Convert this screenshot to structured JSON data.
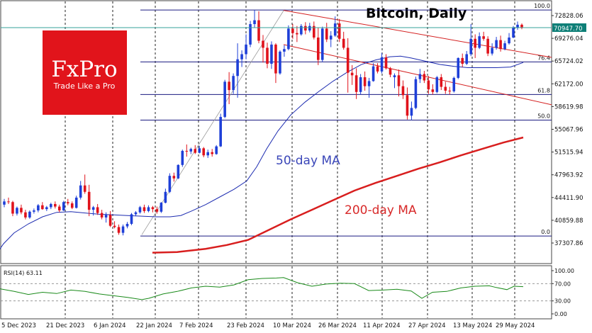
{
  "chart_data": {
    "type": "candlestick",
    "title": "Bitcoin, Daily",
    "symbol_price_label": "70947.70",
    "y_ticks": [
      "72828.06",
      "69276.04",
      "65724.02",
      "62172.00",
      "58619.98",
      "55067.96",
      "51515.94",
      "47963.92",
      "44411.90",
      "40859.88",
      "37307.86"
    ],
    "y_range": [
      35800,
      74300
    ],
    "x_ticks": [
      "5 Dec 2023",
      "21 Dec 2023",
      "6 Jan 2024",
      "22 Jan 2024",
      "7 Feb 2024",
      "23 Feb 2024",
      "10 Mar 2024",
      "26 Mar 2024",
      "11 Apr 2024",
      "27 Apr 2024",
      "13 May 2024",
      "29 May 2024"
    ],
    "colors": {
      "up": "#1e3fd8",
      "down": "#e0121b",
      "ma50": "#1c2bb0",
      "ma200": "#d81e1e",
      "fib": "#1a1a80",
      "channel": "#d42020",
      "rsi": "#1a8a1a",
      "price_line": "#36a29a"
    },
    "fibonacci": [
      {
        "label": "100.0",
        "value": 73700
      },
      {
        "label": "76.4",
        "value": 65600
      },
      {
        "label": "61.8",
        "value": 60500
      },
      {
        "label": "50.0",
        "value": 56500
      },
      {
        "label": "0.0",
        "value": 38400
      }
    ],
    "annotations": {
      "ma50": "50-day MA",
      "ma200": "200-day MA"
    },
    "rsi": {
      "label": "RSI(14) 63.11",
      "ticks": [
        "100.00",
        "70.00",
        "30.00",
        "0.00"
      ],
      "levels": [
        70,
        30
      ]
    },
    "candles": [
      [
        43300,
        44200,
        42900,
        43800
      ],
      [
        43800,
        44400,
        43400,
        43700
      ],
      [
        43700,
        43900,
        41500,
        41900
      ],
      [
        41900,
        43000,
        41600,
        42800
      ],
      [
        42800,
        43300,
        41800,
        42100
      ],
      [
        42100,
        42500,
        41000,
        41300
      ],
      [
        41300,
        42400,
        41100,
        42200
      ],
      [
        42200,
        42700,
        41900,
        42400
      ],
      [
        42400,
        43400,
        42100,
        43200
      ],
      [
        43200,
        43700,
        42500,
        42600
      ],
      [
        42600,
        43100,
        42300,
        42900
      ],
      [
        42900,
        43600,
        42600,
        43400
      ],
      [
        43400,
        43800,
        42700,
        43000
      ],
      [
        43000,
        43300,
        42100,
        42400
      ],
      [
        42400,
        43900,
        42300,
        43700
      ],
      [
        43700,
        44200,
        43200,
        43500
      ],
      [
        43500,
        43800,
        42600,
        42800
      ],
      [
        42800,
        44700,
        42700,
        44400
      ],
      [
        44400,
        47000,
        44100,
        46300
      ],
      [
        46300,
        48000,
        45000,
        45300
      ],
      [
        45300,
        46400,
        41500,
        42500
      ],
      [
        42500,
        43100,
        41600,
        42900
      ],
      [
        42900,
        43400,
        41700,
        42000
      ],
      [
        42000,
        42500,
        41000,
        41300
      ],
      [
        41300,
        42100,
        40500,
        41700
      ],
      [
        41700,
        42300,
        39800,
        40000
      ],
      [
        40000,
        40700,
        39600,
        39800
      ],
      [
        39800,
        40200,
        38600,
        38900
      ],
      [
        38900,
        40200,
        38500,
        39900
      ],
      [
        39900,
        40600,
        39600,
        40300
      ],
      [
        40300,
        42000,
        40100,
        41800
      ],
      [
        41800,
        42300,
        41500,
        42100
      ],
      [
        42100,
        43100,
        41900,
        42900
      ],
      [
        42900,
        43300,
        42000,
        42300
      ],
      [
        42300,
        43200,
        42100,
        42900
      ],
      [
        42900,
        43100,
        42100,
        42600
      ],
      [
        42600,
        43000,
        41900,
        42200
      ],
      [
        42200,
        43700,
        42000,
        43600
      ],
      [
        43600,
        45800,
        43500,
        45300
      ],
      [
        45300,
        48200,
        45100,
        47800
      ],
      [
        47800,
        48300,
        46900,
        47400
      ],
      [
        47400,
        49600,
        47300,
        49500
      ],
      [
        49500,
        51900,
        49200,
        51700
      ],
      [
        51700,
        52700,
        50800,
        51600
      ],
      [
        51600,
        52200,
        51200,
        52000
      ],
      [
        52000,
        52600,
        51200,
        51400
      ],
      [
        51400,
        52500,
        51300,
        52100
      ],
      [
        52100,
        52300,
        50700,
        51000
      ],
      [
        51000,
        51900,
        50600,
        51500
      ],
      [
        51500,
        52000,
        50800,
        51200
      ],
      [
        51200,
        52600,
        51100,
        52400
      ],
      [
        52400,
        57500,
        52300,
        57000
      ],
      [
        57000,
        62800,
        56800,
        62500
      ],
      [
        62500,
        64000,
        59000,
        61200
      ],
      [
        61200,
        63800,
        60600,
        63400
      ],
      [
        63400,
        68500,
        60000,
        66000
      ],
      [
        66000,
        67400,
        64800,
        66800
      ],
      [
        66800,
        69900,
        66000,
        68300
      ],
      [
        68300,
        72000,
        67900,
        71500
      ],
      [
        71500,
        73700,
        71000,
        72100
      ],
      [
        72100,
        73500,
        68500,
        68900
      ],
      [
        68900,
        69800,
        65500,
        67800
      ],
      [
        67800,
        68600,
        64600,
        65300
      ],
      [
        65300,
        68800,
        64500,
        68300
      ],
      [
        68300,
        68500,
        62300,
        63800
      ],
      [
        63800,
        67400,
        63600,
        67200
      ],
      [
        67200,
        68200,
        66400,
        67600
      ],
      [
        67600,
        71300,
        67400,
        70800
      ],
      [
        70800,
        71500,
        69200,
        70100
      ],
      [
        70100,
        71200,
        68700,
        69900
      ],
      [
        69900,
        71500,
        69700,
        71200
      ],
      [
        71200,
        71800,
        69900,
        70500
      ],
      [
        70500,
        71700,
        70200,
        71200
      ],
      [
        71200,
        71900,
        69100,
        69400
      ],
      [
        69400,
        70900,
        65100,
        65900
      ],
      [
        65900,
        71100,
        65600,
        70800
      ],
      [
        70800,
        71700,
        68700,
        69100
      ],
      [
        69100,
        70400,
        67900,
        69700
      ],
      [
        69700,
        72700,
        69500,
        71600
      ],
      [
        71600,
        72300,
        68700,
        69200
      ],
      [
        69200,
        70300,
        67500,
        67800
      ],
      [
        67800,
        69300,
        60800,
        63900
      ],
      [
        63900,
        65100,
        62000,
        63500
      ],
      [
        63500,
        64600,
        59800,
        60900
      ],
      [
        60900,
        63700,
        60500,
        63200
      ],
      [
        63200,
        64100,
        61100,
        61800
      ],
      [
        61800,
        63100,
        60000,
        62600
      ],
      [
        62600,
        65400,
        62500,
        64900
      ],
      [
        64900,
        65400,
        63800,
        64100
      ],
      [
        64100,
        67000,
        63800,
        66300
      ],
      [
        66300,
        66800,
        64400,
        64600
      ],
      [
        64600,
        64800,
        63200,
        63600
      ],
      [
        63200,
        63800,
        61500,
        63500
      ],
      [
        63500,
        64400,
        60200,
        61800
      ],
      [
        61800,
        62700,
        59800,
        60400
      ],
      [
        60400,
        61600,
        56600,
        57200
      ],
      [
        57200,
        59400,
        56500,
        58400
      ],
      [
        58400,
        63300,
        58200,
        62900
      ],
      [
        62900,
        64500,
        62300,
        63700
      ],
      [
        63700,
        64200,
        62300,
        62700
      ],
      [
        62700,
        63400,
        60600,
        61300
      ],
      [
        61300,
        62100,
        60500,
        60900
      ],
      [
        60900,
        63400,
        60700,
        63200
      ],
      [
        63200,
        63700,
        61200,
        61700
      ],
      [
        61700,
        62500,
        60600,
        61100
      ],
      [
        61100,
        61700,
        60500,
        61000
      ],
      [
        61000,
        63300,
        60800,
        63100
      ],
      [
        63100,
        66300,
        62900,
        66200
      ],
      [
        66200,
        66900,
        64800,
        65300
      ],
      [
        65300,
        67300,
        65100,
        66800
      ],
      [
        66800,
        71500,
        66500,
        69200
      ],
      [
        69200,
        69900,
        66200,
        67800
      ],
      [
        67800,
        70200,
        67600,
        69600
      ],
      [
        69600,
        70300,
        68900,
        69200
      ],
      [
        69200,
        69600,
        66500,
        66900
      ],
      [
        66900,
        68500,
        66600,
        67800
      ],
      [
        67800,
        69500,
        67500,
        69000
      ],
      [
        69000,
        69700,
        67200,
        67600
      ],
      [
        67600,
        68900,
        67400,
        68500
      ],
      [
        68500,
        70100,
        68300,
        69400
      ],
      [
        69400,
        71200,
        69300,
        70900
      ],
      [
        70900,
        71900,
        70600,
        71400
      ],
      [
        71400,
        71600,
        70700,
        70900
      ]
    ],
    "ma50": [
      [
        -5,
        35600
      ],
      [
        5,
        37200
      ],
      [
        20,
        38900
      ],
      [
        40,
        40300
      ],
      [
        60,
        41400
      ],
      [
        80,
        42100
      ],
      [
        100,
        42200
      ],
      [
        120,
        42000
      ],
      [
        140,
        41800
      ],
      [
        160,
        41700
      ],
      [
        180,
        41600
      ],
      [
        200,
        41500
      ],
      [
        220,
        41400
      ],
      [
        240,
        41400
      ],
      [
        255,
        41600
      ],
      [
        270,
        42300
      ],
      [
        290,
        43300
      ],
      [
        310,
        44500
      ],
      [
        330,
        45700
      ],
      [
        348,
        47000
      ],
      [
        362,
        49200
      ],
      [
        376,
        52000
      ],
      [
        392,
        54800
      ],
      [
        410,
        57300
      ],
      [
        430,
        59300
      ],
      [
        450,
        61000
      ],
      [
        470,
        62600
      ],
      [
        490,
        64000
      ],
      [
        510,
        65200
      ],
      [
        530,
        65900
      ],
      [
        550,
        66400
      ],
      [
        565,
        66500
      ],
      [
        580,
        66200
      ],
      [
        600,
        65700
      ],
      [
        620,
        65200
      ],
      [
        640,
        64900
      ],
      [
        660,
        64700
      ],
      [
        680,
        64700
      ],
      [
        700,
        64700
      ],
      [
        720,
        64800
      ],
      [
        738,
        65500
      ]
    ],
    "ma200": [
      [
        215,
        35800
      ],
      [
        250,
        35900
      ],
      [
        290,
        36400
      ],
      [
        320,
        37000
      ],
      [
        350,
        37800
      ],
      [
        380,
        39400
      ],
      [
        410,
        41000
      ],
      [
        440,
        42500
      ],
      [
        470,
        44000
      ],
      [
        500,
        45500
      ],
      [
        530,
        46700
      ],
      [
        560,
        47800
      ],
      [
        590,
        48900
      ],
      [
        620,
        49900
      ],
      [
        650,
        51000
      ],
      [
        680,
        52000
      ],
      [
        710,
        53000
      ],
      [
        738,
        53800
      ]
    ],
    "rsi_line": [
      [
        0,
        58
      ],
      [
        20,
        52
      ],
      [
        40,
        45
      ],
      [
        60,
        50
      ],
      [
        80,
        47
      ],
      [
        100,
        55
      ],
      [
        120,
        52
      ],
      [
        140,
        46
      ],
      [
        160,
        42
      ],
      [
        180,
        38
      ],
      [
        200,
        33
      ],
      [
        210,
        36
      ],
      [
        230,
        46
      ],
      [
        250,
        52
      ],
      [
        270,
        60
      ],
      [
        290,
        64
      ],
      [
        310,
        62
      ],
      [
        330,
        67
      ],
      [
        350,
        79
      ],
      [
        370,
        82
      ],
      [
        390,
        83
      ],
      [
        400,
        84
      ],
      [
        420,
        72
      ],
      [
        440,
        64
      ],
      [
        460,
        69
      ],
      [
        480,
        71
      ],
      [
        500,
        70
      ],
      [
        520,
        54
      ],
      [
        540,
        55
      ],
      [
        560,
        57
      ],
      [
        580,
        53
      ],
      [
        595,
        36
      ],
      [
        610,
        50
      ],
      [
        630,
        52
      ],
      [
        650,
        60
      ],
      [
        670,
        64
      ],
      [
        690,
        65
      ],
      [
        700,
        61
      ],
      [
        715,
        56
      ],
      [
        725,
        64
      ],
      [
        738,
        63
      ]
    ]
  }
}
